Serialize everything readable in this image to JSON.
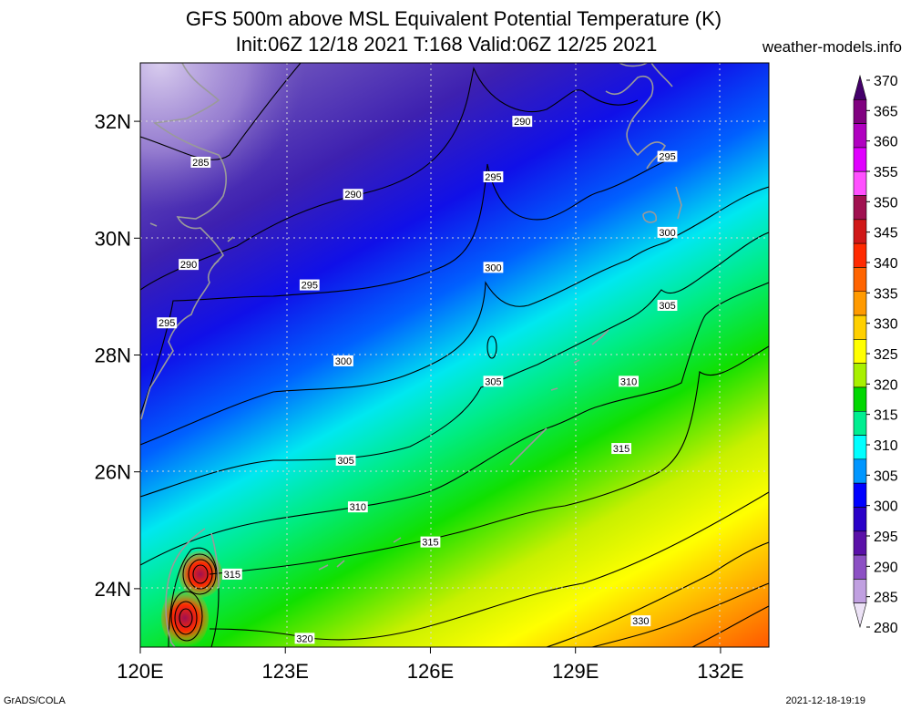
{
  "title_line1": "GFS 500m above MSL Equivalent Potential Temperature (K)",
  "title_line2": "Init:06Z 12/18 2021 T:168 Valid:06Z 12/25 2021",
  "site": "weather-models.info",
  "footer_left": "GrADS/COLA",
  "footer_right": "2021-12-18-19:19",
  "map": {
    "lon_range": [
      120,
      133
    ],
    "lat_range": [
      23,
      33
    ],
    "lon_ticks": [
      "120E",
      "123E",
      "126E",
      "129E",
      "132E"
    ],
    "lat_ticks": [
      "24N",
      "26N",
      "28N",
      "30N",
      "32N"
    ]
  },
  "contour_labels": [
    {
      "text": "285",
      "lon": 121.25,
      "lat": 31.3
    },
    {
      "text": "290",
      "lon": 127.9,
      "lat": 32.0
    },
    {
      "text": "290",
      "lon": 124.4,
      "lat": 30.75
    },
    {
      "text": "290",
      "lon": 121.0,
      "lat": 29.55
    },
    {
      "text": "295",
      "lon": 130.9,
      "lat": 31.4
    },
    {
      "text": "295",
      "lon": 127.3,
      "lat": 31.05
    },
    {
      "text": "295",
      "lon": 123.5,
      "lat": 29.2
    },
    {
      "text": "295",
      "lon": 120.55,
      "lat": 28.55
    },
    {
      "text": "300",
      "lon": 130.9,
      "lat": 30.1
    },
    {
      "text": "300",
      "lon": 127.3,
      "lat": 29.5
    },
    {
      "text": "300",
      "lon": 124.2,
      "lat": 27.9
    },
    {
      "text": "305",
      "lon": 130.9,
      "lat": 28.85
    },
    {
      "text": "305",
      "lon": 127.3,
      "lat": 27.55
    },
    {
      "text": "305",
      "lon": 124.25,
      "lat": 26.2
    },
    {
      "text": "310",
      "lon": 130.1,
      "lat": 27.55
    },
    {
      "text": "310",
      "lon": 124.5,
      "lat": 25.4
    },
    {
      "text": "315",
      "lon": 129.95,
      "lat": 26.4
    },
    {
      "text": "315",
      "lon": 126.0,
      "lat": 24.8
    },
    {
      "text": "315",
      "lon": 121.9,
      "lat": 24.25
    },
    {
      "text": "320",
      "lon": 123.4,
      "lat": 23.15
    },
    {
      "text": "330",
      "lon": 130.35,
      "lat": 23.45
    }
  ],
  "colorbar": {
    "ticks": [
      "370",
      "365",
      "360",
      "355",
      "350",
      "345",
      "340",
      "335",
      "330",
      "325",
      "320",
      "315",
      "310",
      "305",
      "300",
      "295",
      "290",
      "285",
      "280"
    ],
    "colors": [
      "#44006a",
      "#800080",
      "#b000c0",
      "#e000ff",
      "#ff50ff",
      "#a01050",
      "#d01818",
      "#ff2a00",
      "#ff6400",
      "#ff9a00",
      "#ffd000",
      "#ffff00",
      "#a8f000",
      "#00d800",
      "#00ee90",
      "#00ffff",
      "#0096ff",
      "#0000ff",
      "#2a00c8",
      "#5a10a8",
      "#8c50c4",
      "#c0a0e0",
      "#ece2f6"
    ]
  }
}
